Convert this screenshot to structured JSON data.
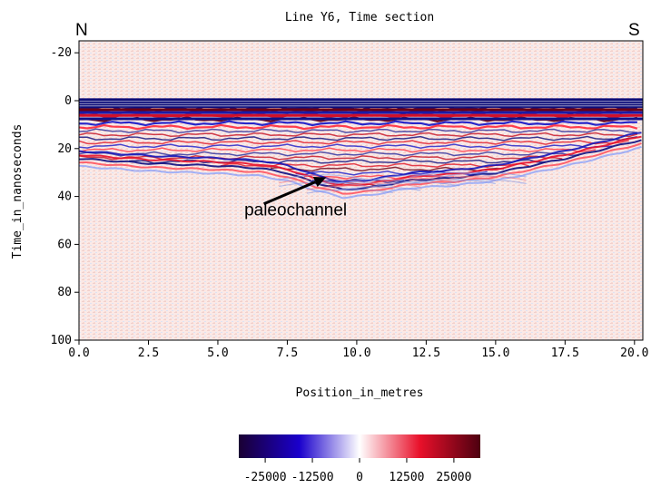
{
  "chart_data": {
    "type": "heatmap",
    "title": "Line Y6, Time section",
    "xlabel": "Position_in_metres",
    "ylabel": "Time_in_nanoseconds",
    "xlim": [
      0,
      20.3
    ],
    "ylim": [
      100,
      -25
    ],
    "x_ticks": [
      "0.0",
      "2.5",
      "5.0",
      "7.5",
      "10.0",
      "12.5",
      "15.0",
      "17.5",
      "20.0"
    ],
    "x_tick_values": [
      0,
      2.5,
      5.0,
      7.5,
      10.0,
      12.5,
      15.0,
      17.5,
      20.0
    ],
    "y_ticks": [
      "-20",
      "0",
      "20",
      "40",
      "60",
      "80",
      "100"
    ],
    "y_tick_values": [
      -20,
      0,
      20,
      40,
      60,
      80,
      100
    ],
    "grid": false,
    "corner_labels": {
      "left": "N",
      "right": "S"
    },
    "annotation": {
      "text": "paleochannel",
      "arrow_tip": [
        8.9,
        32
      ],
      "text_anchor": [
        7.8,
        48
      ]
    },
    "reflectors": {
      "surface_band_ns": [
        -1,
        3
      ],
      "reflector_depth_profile": [
        {
          "x": 0.0,
          "t": 24
        },
        {
          "x": 2.5,
          "t": 26
        },
        {
          "x": 5.0,
          "t": 27
        },
        {
          "x": 6.5,
          "t": 28
        },
        {
          "x": 7.5,
          "t": 30
        },
        {
          "x": 8.5,
          "t": 34
        },
        {
          "x": 9.5,
          "t": 37
        },
        {
          "x": 10.5,
          "t": 36
        },
        {
          "x": 12.0,
          "t": 33
        },
        {
          "x": 13.5,
          "t": 32
        },
        {
          "x": 15.0,
          "t": 30
        },
        {
          "x": 17.5,
          "t": 24
        },
        {
          "x": 20.3,
          "t": 16
        }
      ]
    },
    "colorbar": {
      "ticks": [
        "-25000",
        "-12500",
        "0",
        "12500",
        "25000"
      ],
      "tick_values": [
        -25000,
        -12500,
        0,
        12500,
        25000
      ],
      "range": [
        -32000,
        32000
      ],
      "colors": [
        "#1a0033",
        "#1a00cc",
        "#ffffff",
        "#e8102a",
        "#4d0010"
      ]
    }
  }
}
